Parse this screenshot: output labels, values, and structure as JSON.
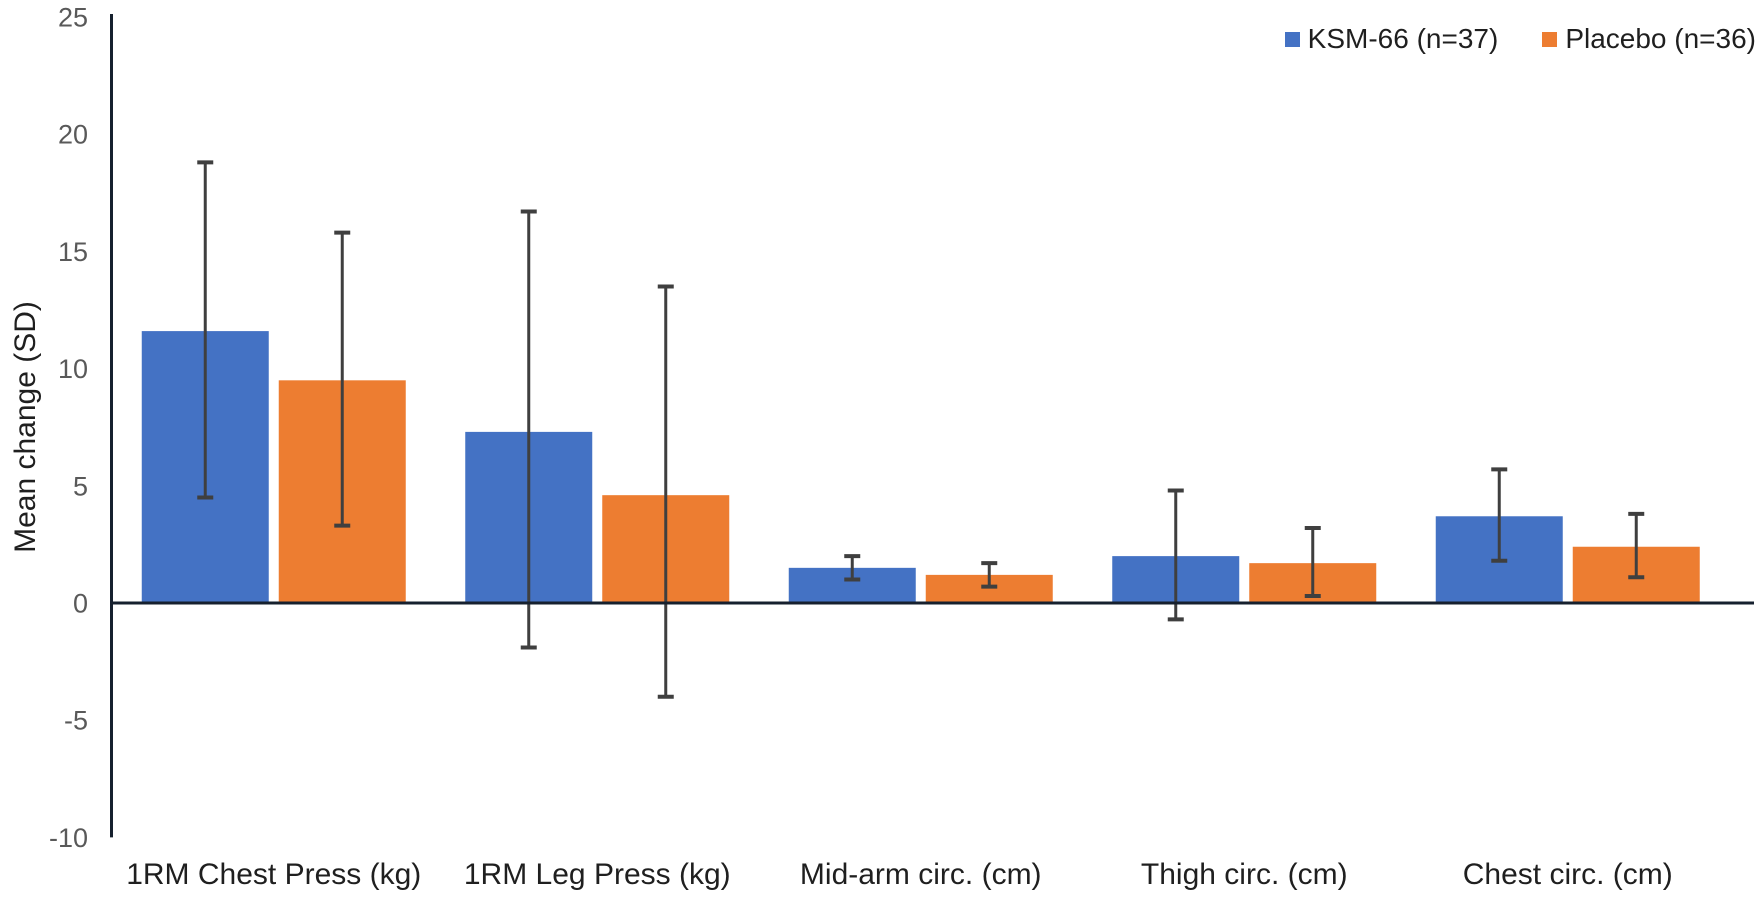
{
  "chart_data": {
    "type": "bar",
    "title": "",
    "xlabel": "",
    "ylabel": "Mean change (SD)",
    "ylim": [
      -10,
      25
    ],
    "yticks": [
      25,
      20,
      15,
      10,
      5,
      0,
      -5,
      -10
    ],
    "grid": false,
    "legend_position": "top-right",
    "categories": [
      "1RM Chest Press (kg)",
      "1RM Leg Press (kg)",
      "Mid-arm circ. (cm)",
      "Thigh circ. (cm)",
      "Chest circ. (cm)"
    ],
    "series": [
      {
        "name": "KSM-66 (n=37)",
        "color": "#4472C4",
        "values": [
          11.6,
          7.3,
          1.5,
          2.0,
          3.7
        ],
        "error_upper_tip": [
          18.8,
          16.7,
          2.0,
          4.8,
          5.7
        ],
        "error_lower_tip": [
          4.5,
          -1.9,
          1.0,
          -0.7,
          1.8
        ]
      },
      {
        "name": "Placebo (n=36)",
        "color": "#ED7D31",
        "values": [
          9.5,
          4.6,
          1.2,
          1.7,
          2.4
        ],
        "error_upper_tip": [
          15.8,
          13.5,
          1.7,
          3.2,
          3.8
        ],
        "error_lower_tip": [
          3.3,
          -4.0,
          0.7,
          0.3,
          1.1
        ]
      }
    ],
    "colors": {
      "axis": "#16202e",
      "error_bar": "#3f3f3f",
      "tick_label": "#595959",
      "category_label": "#1f1f1f",
      "legend_text": "#1f1f1f"
    }
  }
}
